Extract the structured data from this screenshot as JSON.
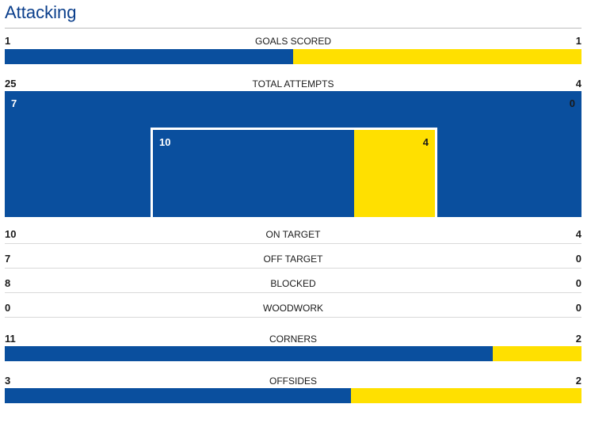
{
  "section_title": "Attacking",
  "colors": {
    "home": "#0a4f9e",
    "away": "#ffe000"
  },
  "goals_scored": {
    "label": "GOALS SCORED",
    "home": "1",
    "away": "1",
    "home_share": 0.5
  },
  "total_attempts": {
    "label": "TOTAL ATTEMPTS",
    "home": "25",
    "away": "4",
    "off_goal_home": "7",
    "off_goal_away": "0",
    "on_goal_home": "10",
    "on_goal_away": "4",
    "on_goal_home_share": 0.714
  },
  "on_target": {
    "label": "ON TARGET",
    "home": "10",
    "away": "4"
  },
  "off_target": {
    "label": "OFF TARGET",
    "home": "7",
    "away": "0"
  },
  "blocked": {
    "label": "BLOCKED",
    "home": "8",
    "away": "0"
  },
  "woodwork": {
    "label": "WOODWORK",
    "home": "0",
    "away": "0"
  },
  "corners": {
    "label": "CORNERS",
    "home": "11",
    "away": "2",
    "home_share": 0.846
  },
  "offsides": {
    "label": "OFFSIDES",
    "home": "3",
    "away": "2",
    "home_share": 0.6
  }
}
